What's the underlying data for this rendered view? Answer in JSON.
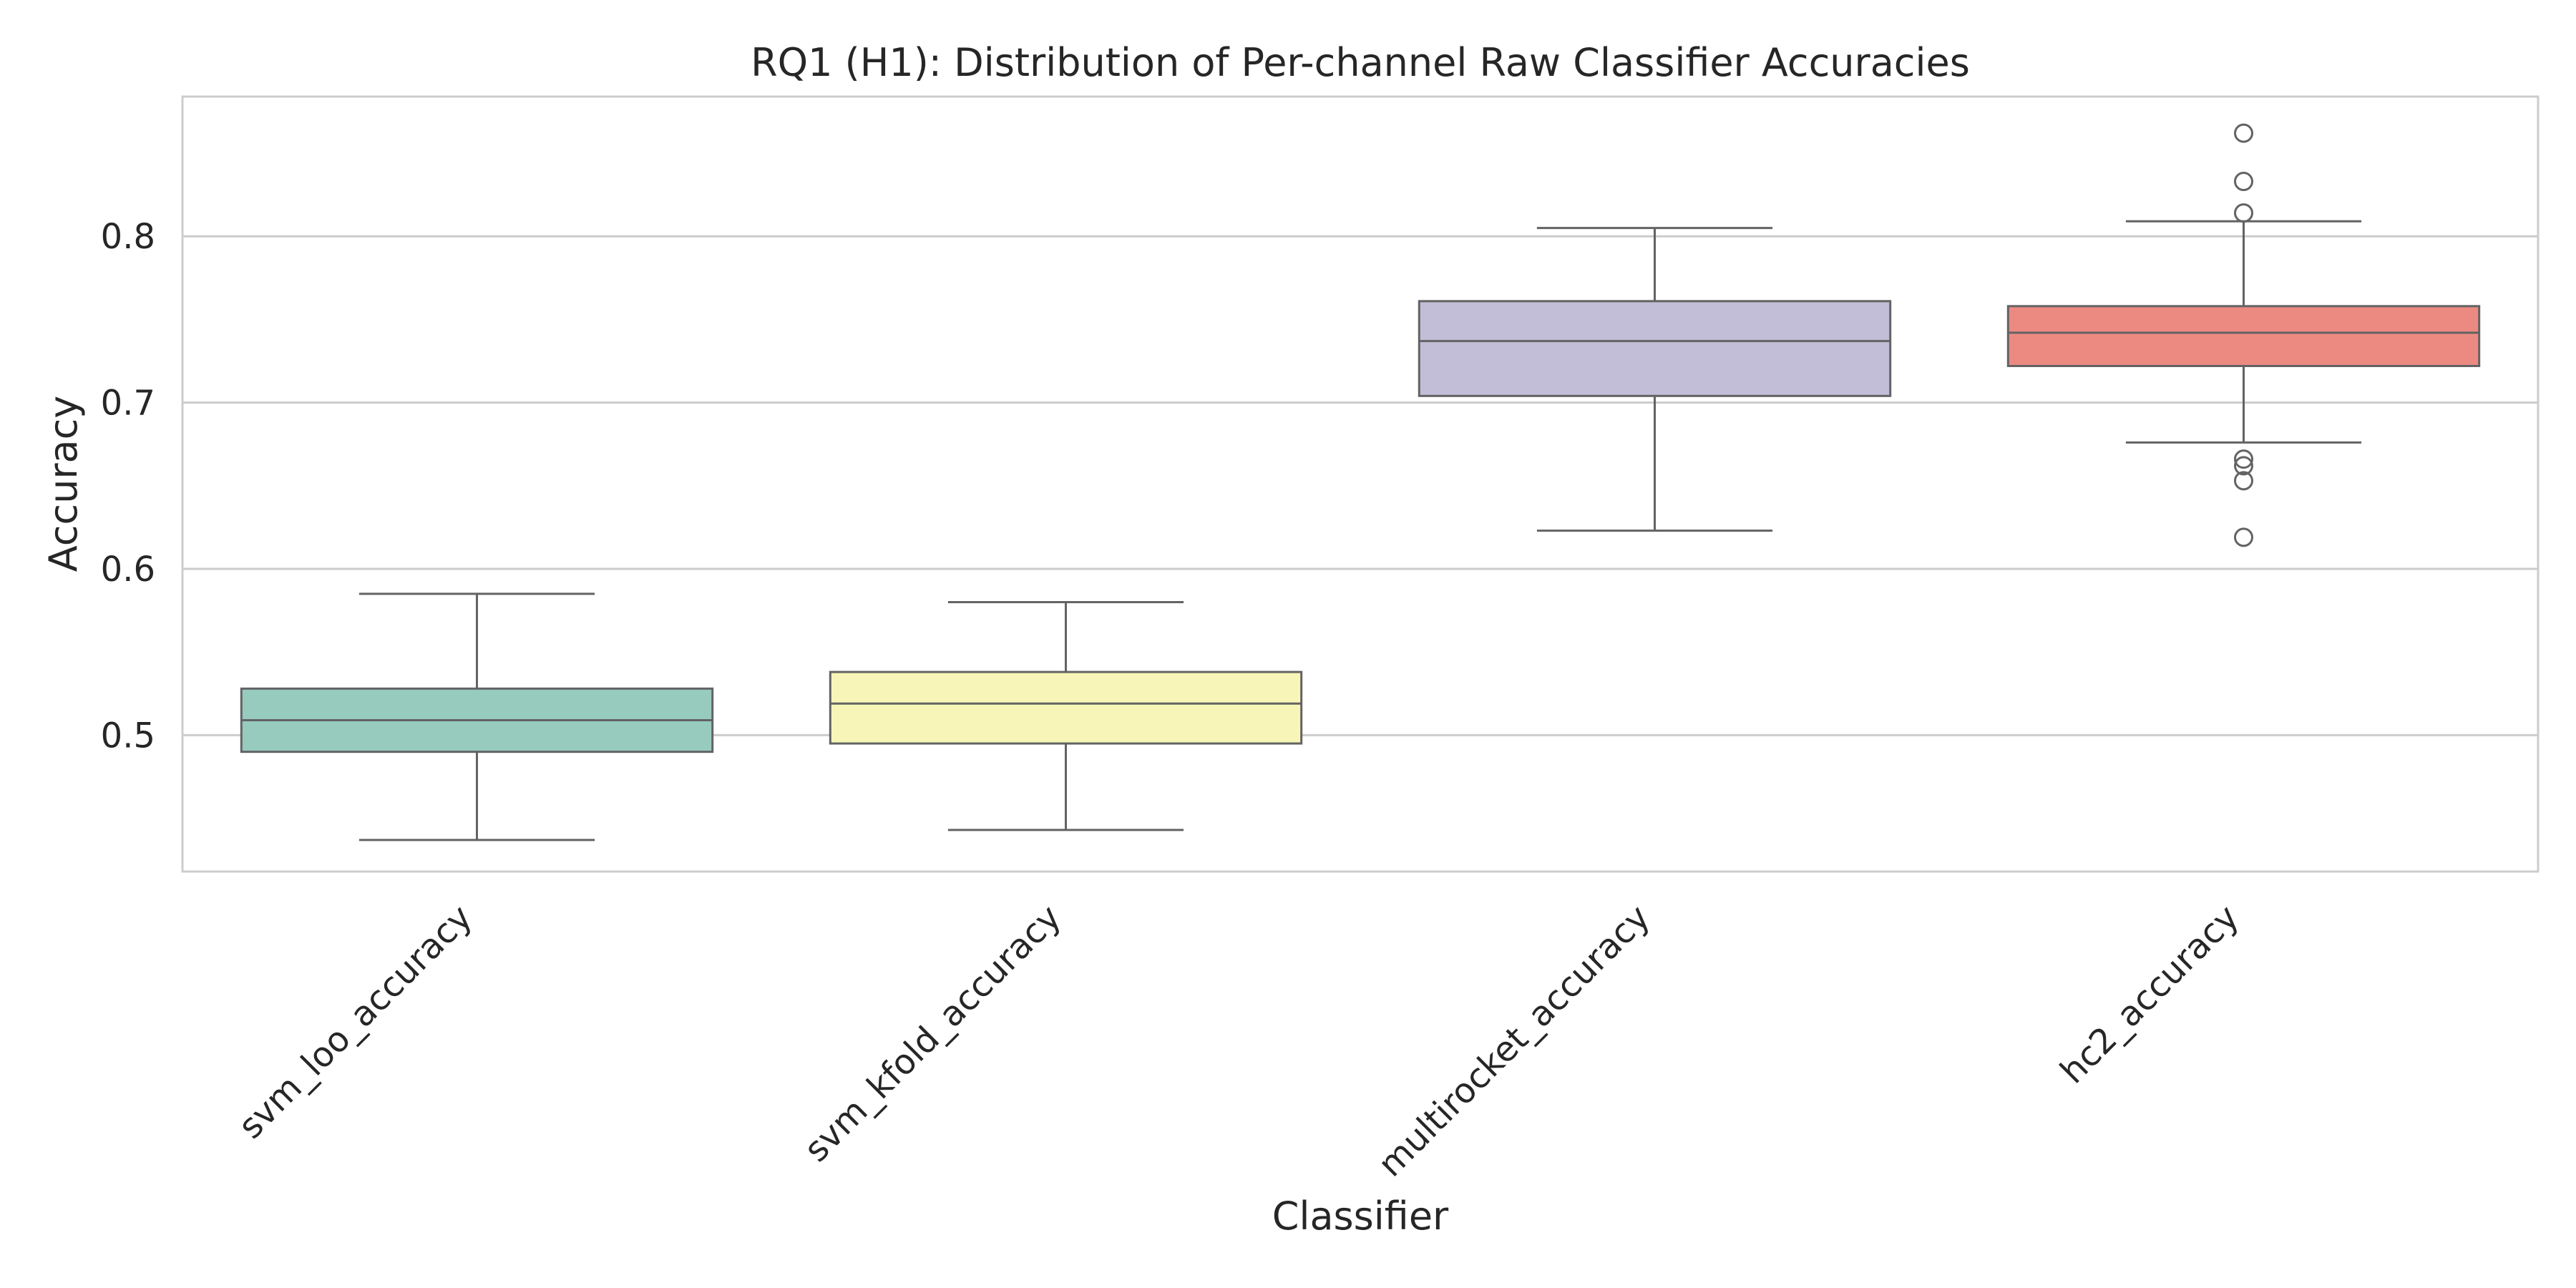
{
  "chart_data": {
    "type": "box",
    "title": "RQ1 (H1): Distribution of Per-channel Raw Classifier Accuracies",
    "xlabel": "Classifier",
    "ylabel": "Accuracy",
    "ylim": [
      0.418,
      0.884
    ],
    "yticks": [
      0.5,
      0.6,
      0.7,
      0.8
    ],
    "ytick_labels": [
      "0.5",
      "0.6",
      "0.7",
      "0.8"
    ],
    "grid": "horizontal",
    "categories": [
      "svm_loo_accuracy",
      "svm_kfold_accuracy",
      "multirocket_accuracy",
      "hc2_accuracy"
    ],
    "boxes": [
      {
        "name": "svm_loo_accuracy",
        "whisker_low": 0.437,
        "q1": 0.49,
        "median": 0.509,
        "q3": 0.528,
        "whisker_high": 0.585,
        "outliers": [],
        "color": "#96cbbe"
      },
      {
        "name": "svm_kfold_accuracy",
        "whisker_low": 0.443,
        "q1": 0.495,
        "median": 0.519,
        "q3": 0.538,
        "whisker_high": 0.58,
        "outliers": [],
        "color": "#f7f6b8"
      },
      {
        "name": "multirocket_accuracy",
        "whisker_low": 0.623,
        "q1": 0.704,
        "median": 0.737,
        "q3": 0.761,
        "whisker_high": 0.805,
        "outliers": [],
        "color": "#c2bed8"
      },
      {
        "name": "hc2_accuracy",
        "whisker_low": 0.676,
        "q1": 0.722,
        "median": 0.742,
        "q3": 0.758,
        "whisker_high": 0.809,
        "outliers": [
          0.862,
          0.833,
          0.814,
          0.666,
          0.662,
          0.653,
          0.619
        ],
        "color": "#ec8a82"
      }
    ]
  }
}
